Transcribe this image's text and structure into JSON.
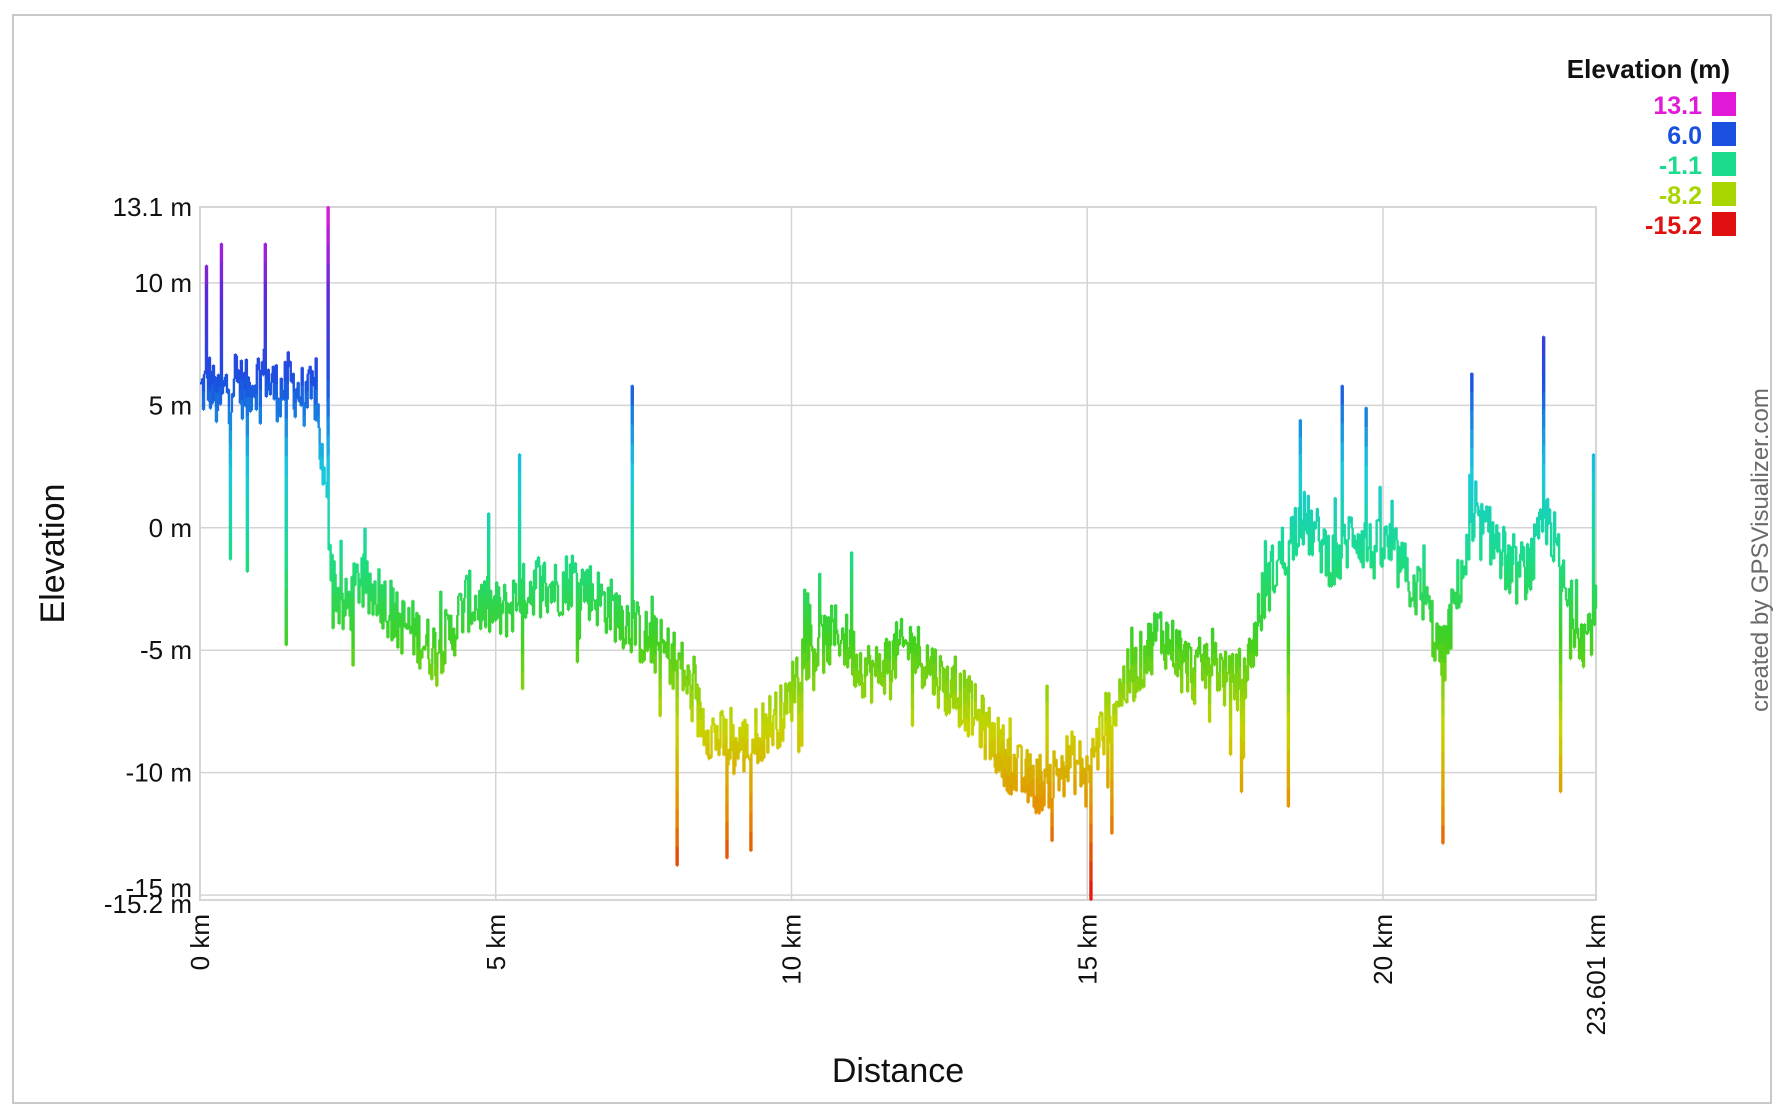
{
  "chart_data": {
    "type": "line",
    "xlabel": "Distance",
    "ylabel": "Elevation",
    "credit": "created by GPSVisualizer.com",
    "xlim": [
      0,
      23.601
    ],
    "ylim": [
      -15.2,
      13.1
    ],
    "grid": true,
    "x_ticks": [
      {
        "value": 0,
        "label": "0 km"
      },
      {
        "value": 5,
        "label": "5 km"
      },
      {
        "value": 10,
        "label": "10 km"
      },
      {
        "value": 15,
        "label": "15 km"
      },
      {
        "value": 20,
        "label": "20 km"
      },
      {
        "value": 23.601,
        "label": "23.601 km"
      }
    ],
    "y_ticks": [
      {
        "value": 13.1,
        "label": "13.1 m"
      },
      {
        "value": 10,
        "label": "10 m"
      },
      {
        "value": 5,
        "label": "5 m"
      },
      {
        "value": 0,
        "label": "0 m"
      },
      {
        "value": -5,
        "label": "-5 m"
      },
      {
        "value": -10,
        "label": "-10 m"
      },
      {
        "value": -15,
        "label": "-15 m"
      },
      {
        "value": -15.2,
        "label": "-15.2 m"
      }
    ],
    "legend": {
      "title": "Elevation (m)",
      "placement": "top-right",
      "entries": [
        {
          "label": "13.1",
          "color": "#e01ad8"
        },
        {
          "label": "6.0",
          "color": "#1a50e0"
        },
        {
          "label": "-1.1",
          "color": "#1adc8c"
        },
        {
          "label": "-8.2",
          "color": "#a8d400"
        },
        {
          "label": "-15.2",
          "color": "#e01010"
        }
      ]
    },
    "color_scale": {
      "stops": [
        {
          "value": -15.2,
          "color": "#e01010"
        },
        {
          "value": -11.7,
          "color": "#e88a00"
        },
        {
          "value": -8.2,
          "color": "#c8d400"
        },
        {
          "value": -4.6,
          "color": "#40d020"
        },
        {
          "value": -1.1,
          "color": "#1adc8c"
        },
        {
          "value": 2.4,
          "color": "#18c8e0"
        },
        {
          "value": 6.0,
          "color": "#1a50e0"
        },
        {
          "value": 9.5,
          "color": "#5a2ad8"
        },
        {
          "value": 13.1,
          "color": "#e01ad8"
        }
      ]
    },
    "series": [
      {
        "x": [
          0,
          0.15,
          0.3,
          0.45,
          0.6,
          0.75,
          0.9,
          1.05,
          1.2,
          1.35,
          1.5,
          1.65,
          1.8,
          1.95,
          2.1,
          2.25,
          2.4,
          2.55,
          2.7,
          2.85,
          3.0,
          3.3,
          3.6,
          3.9,
          4.2,
          4.5,
          4.8,
          5.1,
          5.4,
          5.7,
          6.0,
          6.3,
          6.6,
          6.9,
          7.2,
          7.5,
          7.8,
          8.1,
          8.4,
          8.7,
          9.0,
          9.3,
          9.6,
          9.9,
          10.2,
          10.5,
          10.8,
          11.1,
          11.4,
          11.7,
          12.0,
          12.3,
          12.6,
          12.9,
          13.2,
          13.5,
          13.8,
          14.1,
          14.4,
          14.7,
          15.0,
          15.3,
          15.6,
          15.9,
          16.2,
          16.5,
          16.8,
          17.1,
          17.4,
          17.7,
          18.0,
          18.3,
          18.6,
          18.9,
          19.2,
          19.5,
          19.8,
          20.1,
          20.4,
          20.7,
          21.0,
          21.3,
          21.6,
          21.9,
          22.2,
          22.5,
          22.8,
          23.1,
          23.4,
          23.601
        ],
        "y": [
          5.5,
          6.0,
          5.0,
          5.8,
          6.2,
          5.5,
          6.0,
          6.3,
          5.8,
          5.5,
          6.0,
          5.6,
          5.2,
          5.5,
          1.5,
          -2.0,
          -3.5,
          -3.0,
          -2.0,
          -2.8,
          -2.5,
          -3.8,
          -4.2,
          -5.0,
          -4.5,
          -3.0,
          -3.2,
          -3.5,
          -2.8,
          -2.2,
          -2.5,
          -2.0,
          -2.6,
          -3.2,
          -3.8,
          -4.5,
          -5.0,
          -5.5,
          -7.5,
          -8.5,
          -9.0,
          -8.8,
          -8.0,
          -7.5,
          -5.0,
          -4.8,
          -4.2,
          -5.5,
          -6.0,
          -5.2,
          -4.8,
          -5.5,
          -6.5,
          -7.0,
          -8.0,
          -9.0,
          -10.0,
          -10.5,
          -10.2,
          -9.5,
          -10.0,
          -8.0,
          -6.5,
          -5.5,
          -4.2,
          -5.0,
          -6.0,
          -5.2,
          -6.5,
          -5.8,
          -2.5,
          -1.0,
          0.5,
          -0.5,
          -1.5,
          0.0,
          -1.0,
          -0.8,
          -2.0,
          -3.0,
          -5.5,
          -2.0,
          0.0,
          -0.5,
          -2.0,
          -1.5,
          0.5,
          -3.0,
          -4.5,
          -3.5
        ],
        "spikes": [
          {
            "x": 0.1,
            "y": 10.7
          },
          {
            "x": 0.35,
            "y": 11.6
          },
          {
            "x": 1.1,
            "y": 11.6
          },
          {
            "x": 2.15,
            "y": 13.1
          },
          {
            "x": 0.5,
            "y": -1.3
          },
          {
            "x": 0.8,
            "y": -1.8
          },
          {
            "x": 1.45,
            "y": -4.8
          },
          {
            "x": 5.4,
            "y": 3.0
          },
          {
            "x": 5.45,
            "y": -6.6
          },
          {
            "x": 7.3,
            "y": 5.8
          },
          {
            "x": 8.05,
            "y": -13.8
          },
          {
            "x": 8.9,
            "y": -13.5
          },
          {
            "x": 9.3,
            "y": -13.2
          },
          {
            "x": 11.0,
            "y": -1.0
          },
          {
            "x": 14.4,
            "y": -12.8
          },
          {
            "x": 15.05,
            "y": -15.2
          },
          {
            "x": 15.4,
            "y": -12.5
          },
          {
            "x": 17.6,
            "y": -10.8
          },
          {
            "x": 18.4,
            "y": -11.4
          },
          {
            "x": 18.6,
            "y": 4.4
          },
          {
            "x": 19.3,
            "y": 5.8
          },
          {
            "x": 19.7,
            "y": 4.9
          },
          {
            "x": 21.0,
            "y": -12.9
          },
          {
            "x": 21.5,
            "y": 6.3
          },
          {
            "x": 22.7,
            "y": 7.8
          },
          {
            "x": 23.0,
            "y": -10.8
          },
          {
            "x": 23.55,
            "y": 3.0
          }
        ]
      }
    ]
  }
}
